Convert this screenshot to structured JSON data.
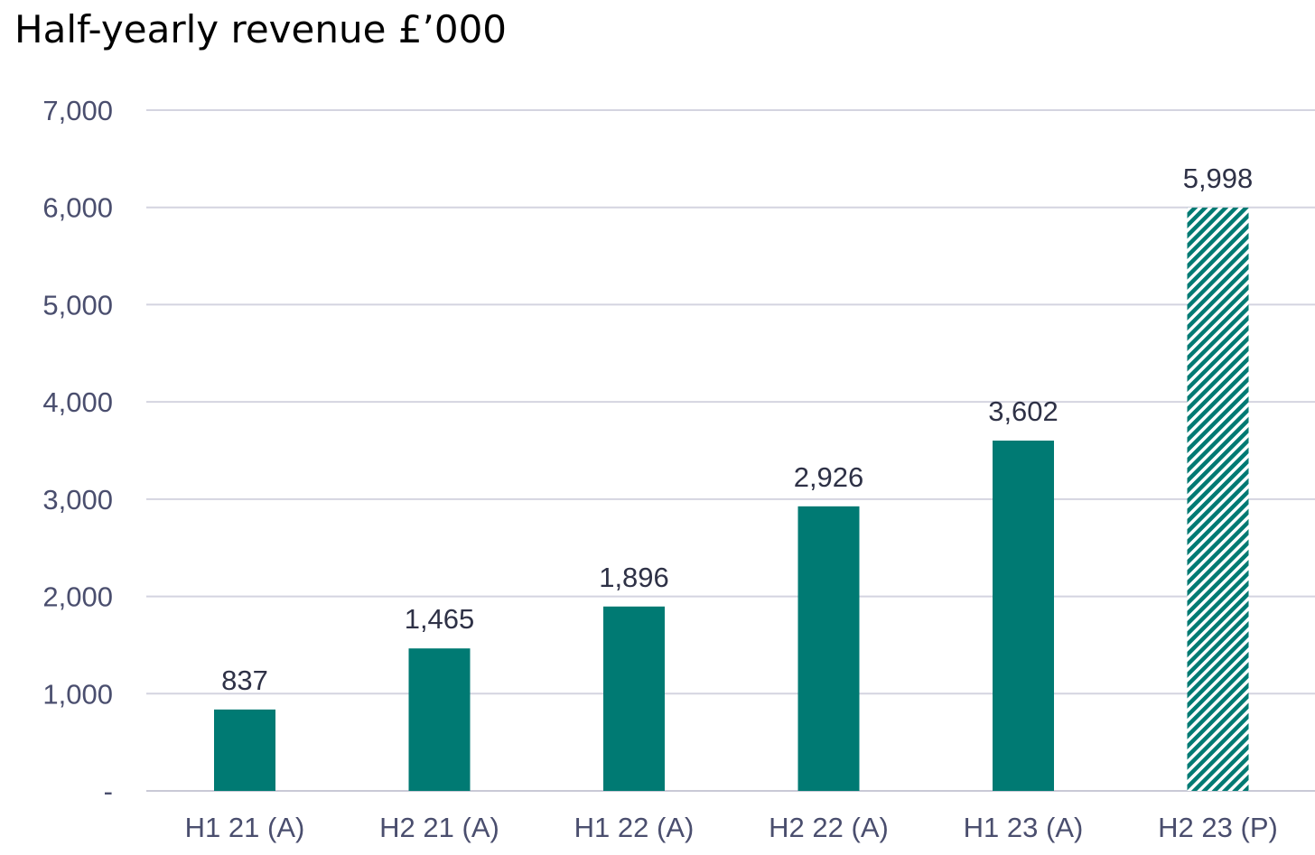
{
  "chart_data": {
    "type": "bar",
    "title": "Half-yearly revenue £’000",
    "xlabel": "",
    "ylabel": "",
    "categories": [
      "H1 21 (A)",
      "H2 21 (A)",
      "H1 22 (A)",
      "H2 22 (A)",
      "H1 23 (A)",
      "H2 23 (P)"
    ],
    "values": [
      837,
      1465,
      1896,
      2926,
      3602,
      5998
    ],
    "data_labels": [
      "837",
      "1,465",
      "1,896",
      "2,926",
      "3,602",
      "5,998"
    ],
    "projected": [
      false,
      false,
      false,
      false,
      false,
      true
    ],
    "ylim": [
      0,
      7000
    ],
    "yticks": [
      0,
      1000,
      2000,
      3000,
      4000,
      5000,
      6000,
      7000
    ],
    "ytick_labels": [
      "-",
      "1,000",
      "2,000",
      "3,000",
      "4,000",
      "5,000",
      "6,000",
      "7,000"
    ],
    "grid": true,
    "legend": "none",
    "colors": {
      "bar": "#007a73",
      "hatch": "#007a73",
      "grid": "#d4d4e0",
      "axis_text": "#4a4e6e",
      "label_text": "#2e3146"
    }
  }
}
